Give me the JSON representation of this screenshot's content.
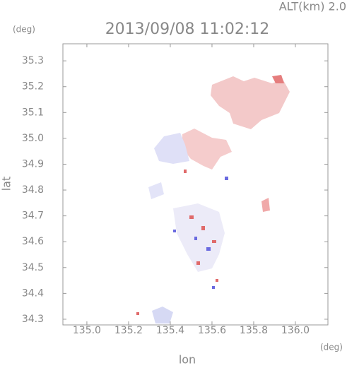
{
  "chart_data": {
    "type": "map",
    "title": "2013/09/08 11:02:12",
    "subtitle": "ALT(km) 2.0",
    "x_label": "lon",
    "y_label": "lat",
    "x_unit": "(deg)",
    "y_unit": "(deg)",
    "xlim": [
      134.885,
      136.156
    ],
    "ylim": [
      34.278,
      35.366
    ],
    "xticks": [
      {
        "value": 135,
        "label": "135.0"
      },
      135.2,
      135.4,
      135.6,
      135.8,
      {
        "value": 136,
        "label": "136.0"
      }
    ],
    "yticks": [
      34.3,
      34.4,
      34.5,
      34.6,
      34.7,
      34.8,
      34.9,
      {
        "value": 35,
        "label": "35.0"
      },
      35.1,
      35.2,
      35.3
    ]
  }
}
